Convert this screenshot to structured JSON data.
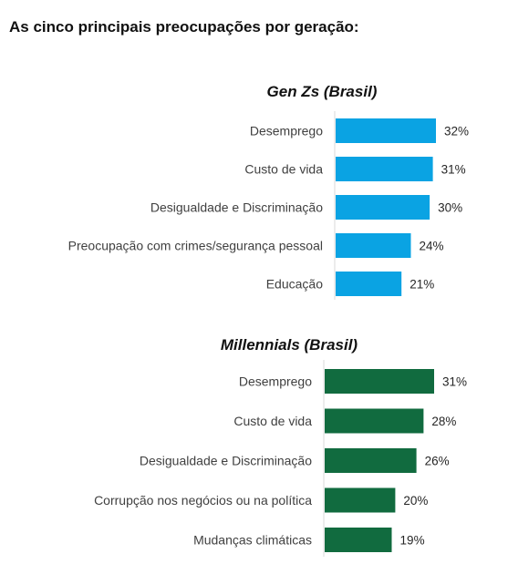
{
  "page_title": "As cinco principais preocupações por geração:",
  "chart_data": [
    {
      "type": "bar",
      "orientation": "horizontal",
      "title": "Gen Zs (Brasil)",
      "color": "#0aa3e3",
      "categories": [
        "Desemprego",
        "Custo de vida",
        "Desigualdade e Discriminação",
        "Preocupação com crimes/segurança pessoal",
        "Educação"
      ],
      "values": [
        32,
        31,
        30,
        24,
        21
      ],
      "value_labels": [
        "32%",
        "31%",
        "30%",
        "24%",
        "21%"
      ],
      "unit": "%",
      "xlim": [
        0,
        32
      ],
      "grid": false,
      "legend": "none"
    },
    {
      "type": "bar",
      "orientation": "horizontal",
      "title": "Millennials (Brasil)",
      "color": "#116b3f",
      "categories": [
        "Desemprego",
        "Custo de vida",
        "Desigualdade e Discriminação",
        "Corrupção nos negócios ou na política",
        "Mudanças climáticas"
      ],
      "values": [
        31,
        28,
        26,
        20,
        19
      ],
      "value_labels": [
        "31%",
        "28%",
        "26%",
        "20%",
        "19%"
      ],
      "unit": "%",
      "xlim": [
        0,
        31
      ],
      "grid": false,
      "legend": "none"
    }
  ]
}
